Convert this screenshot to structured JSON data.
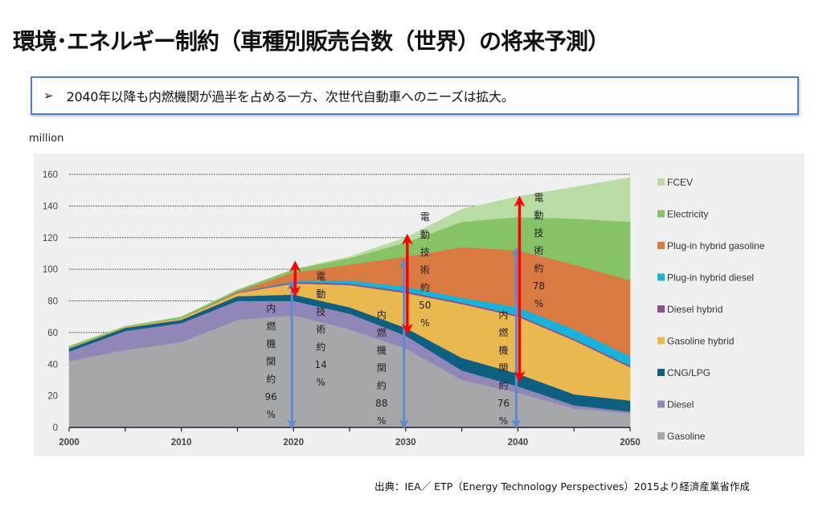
{
  "header": {
    "title": "環境･エネルギー制約（車種別販売台数（世界）の将来予測）"
  },
  "summary": {
    "bullet": "➢",
    "text": "2040年以降も内燃機関が過半を占める一方、次世代自動車へのニーズは拡大。"
  },
  "source": "出典：IEA／ ETP（Energy Technology Perspectives）2015より経済産業省作成",
  "chart_data": {
    "type": "area",
    "stacked": true,
    "title": "",
    "ylabel": "million",
    "xlabel": "",
    "x": [
      2000,
      2005,
      2010,
      2015,
      2020,
      2025,
      2030,
      2035,
      2040,
      2045,
      2050
    ],
    "xticks": [
      2000,
      2010,
      2020,
      2030,
      2040,
      2050
    ],
    "xlim": [
      2000,
      2050
    ],
    "ylim": [
      0,
      160
    ],
    "yticks": [
      0,
      20,
      40,
      60,
      80,
      100,
      120,
      140,
      160
    ],
    "grid": "horizontal-dotted",
    "legend_position": "right",
    "series": [
      {
        "name": "Gasoline",
        "color": "#a6a7ab",
        "values": [
          42,
          49,
          54,
          68,
          71,
          62,
          50,
          30,
          22,
          12,
          9
        ]
      },
      {
        "name": "Diesel",
        "color": "#9086b8",
        "values": [
          6,
          12,
          12,
          12,
          9,
          10,
          8,
          6,
          4,
          2,
          1
        ]
      },
      {
        "name": "CNG/LPG",
        "color": "#0f6080",
        "values": [
          2,
          2,
          2,
          3,
          4,
          4,
          5,
          8,
          8,
          7,
          7
        ]
      },
      {
        "name": "Gasoline hybrid",
        "color": "#e9b84e",
        "values": [
          0.5,
          0.5,
          1,
          2,
          7,
          14,
          22,
          34,
          36,
          34,
          21
        ]
      },
      {
        "name": "Diesel hybrid",
        "color": "#8c5189",
        "values": [
          0,
          0,
          0,
          0.3,
          1,
          1,
          1,
          1,
          1,
          1,
          1
        ]
      },
      {
        "name": "Plug-in hybrid diesel",
        "color": "#19b2d8",
        "values": [
          0,
          0,
          0,
          0.2,
          0.5,
          2,
          3,
          3,
          5,
          6,
          6
        ]
      },
      {
        "name": "Plug-in hybrid gasoline",
        "color": "#da7a43",
        "values": [
          0,
          0,
          0,
          0.5,
          5.5,
          10,
          19,
          32,
          36,
          41,
          48
        ]
      },
      {
        "name": "Electricity",
        "color": "#85c366",
        "values": [
          1,
          0.5,
          1,
          1,
          2,
          4,
          9,
          16,
          21,
          29,
          37
        ]
      },
      {
        "name": "FCEV",
        "color": "#b8dca4",
        "values": [
          0,
          0,
          0,
          0,
          0,
          1,
          3,
          8,
          13,
          20,
          28
        ]
      }
    ],
    "legend_order": [
      "FCEV",
      "Electricity",
      "Plug-in hybrid gasoline",
      "Plug-in hybrid diesel",
      "Diesel hybrid",
      "Gasoline hybrid",
      "CNG/LPG",
      "Diesel",
      "Gasoline"
    ],
    "annotations": [
      {
        "year": 2020,
        "type": "ice",
        "label": [
          "内",
          "燃",
          "機",
          "関",
          "約",
          "96",
          "%"
        ],
        "share_percent": 96,
        "range": [
          0,
          92
        ],
        "color": "#5b8bd0"
      },
      {
        "year": 2020,
        "type": "electric",
        "label": [
          "電",
          "動",
          "技",
          "術",
          "約",
          "14",
          "%"
        ],
        "share_percent": 14,
        "range": [
          84,
          104
        ],
        "color": "#ff0000"
      },
      {
        "year": 2030,
        "type": "ice",
        "label": [
          "内",
          "燃",
          "機",
          "関",
          "約",
          "88",
          "%"
        ],
        "share_percent": 88,
        "range": [
          0,
          106
        ],
        "color": "#5b8bd0"
      },
      {
        "year": 2030,
        "type": "electric",
        "label": [
          "電",
          "動",
          "技",
          "術",
          "約",
          "50",
          "%"
        ],
        "share_percent": 50,
        "range": [
          60,
          121
        ],
        "color": "#ff0000"
      },
      {
        "year": 2040,
        "type": "ice",
        "label": [
          "内",
          "燃",
          "機",
          "関",
          "約",
          "76",
          "%"
        ],
        "share_percent": 76,
        "range": [
          0,
          113
        ],
        "color": "#5b8bd0"
      },
      {
        "year": 2040,
        "type": "electric",
        "label": [
          "電",
          "動",
          "技",
          "術",
          "約",
          "78",
          "%"
        ],
        "share_percent": 78,
        "range": [
          30,
          145
        ],
        "color": "#ff0000"
      }
    ]
  }
}
